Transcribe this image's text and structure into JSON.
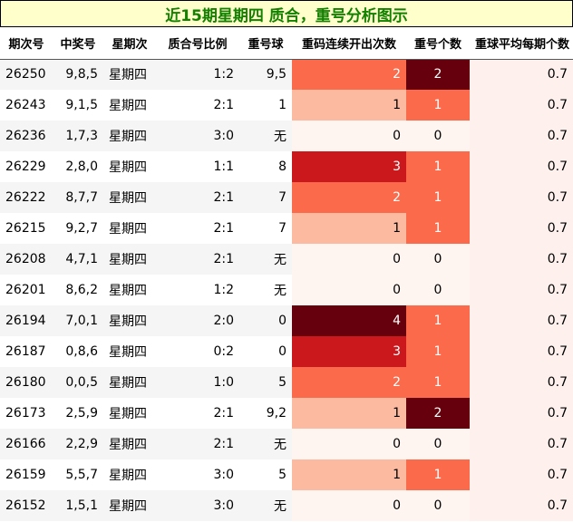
{
  "title": "近15期星期四 质合，重号分析图示",
  "columns": [
    "期次号",
    "中奖号",
    "星期次",
    "质合号比例",
    "重号球",
    "重码连续开出次数",
    "重号个数",
    "重球平均每期个数"
  ],
  "rows": [
    {
      "issue": "26250",
      "numbers": "9,8,5",
      "weekday": "星期四",
      "ratio": "1:2",
      "repeat_ball": "9,5",
      "consecutive": "2",
      "repeat_count": "2",
      "avg": "0.7"
    },
    {
      "issue": "26243",
      "numbers": "9,1,5",
      "weekday": "星期四",
      "ratio": "2:1",
      "repeat_ball": "1",
      "consecutive": "1",
      "repeat_count": "1",
      "avg": "0.7"
    },
    {
      "issue": "26236",
      "numbers": "1,7,3",
      "weekday": "星期四",
      "ratio": "3:0",
      "repeat_ball": "无",
      "consecutive": "0",
      "repeat_count": "0",
      "avg": "0.7"
    },
    {
      "issue": "26229",
      "numbers": "2,8,0",
      "weekday": "星期四",
      "ratio": "1:1",
      "repeat_ball": "8",
      "consecutive": "3",
      "repeat_count": "1",
      "avg": "0.7"
    },
    {
      "issue": "26222",
      "numbers": "8,7,7",
      "weekday": "星期四",
      "ratio": "2:1",
      "repeat_ball": "7",
      "consecutive": "2",
      "repeat_count": "1",
      "avg": "0.7"
    },
    {
      "issue": "26215",
      "numbers": "9,2,7",
      "weekday": "星期四",
      "ratio": "2:1",
      "repeat_ball": "7",
      "consecutive": "1",
      "repeat_count": "1",
      "avg": "0.7"
    },
    {
      "issue": "26208",
      "numbers": "4,7,1",
      "weekday": "星期四",
      "ratio": "2:1",
      "repeat_ball": "无",
      "consecutive": "0",
      "repeat_count": "0",
      "avg": "0.7"
    },
    {
      "issue": "26201",
      "numbers": "8,6,2",
      "weekday": "星期四",
      "ratio": "1:2",
      "repeat_ball": "无",
      "consecutive": "0",
      "repeat_count": "0",
      "avg": "0.7"
    },
    {
      "issue": "26194",
      "numbers": "7,0,1",
      "weekday": "星期四",
      "ratio": "2:0",
      "repeat_ball": "0",
      "consecutive": "4",
      "repeat_count": "1",
      "avg": "0.7"
    },
    {
      "issue": "26187",
      "numbers": "0,8,6",
      "weekday": "星期四",
      "ratio": "0:2",
      "repeat_ball": "0",
      "consecutive": "3",
      "repeat_count": "1",
      "avg": "0.7"
    },
    {
      "issue": "26180",
      "numbers": "0,0,5",
      "weekday": "星期四",
      "ratio": "1:0",
      "repeat_ball": "5",
      "consecutive": "2",
      "repeat_count": "1",
      "avg": "0.7"
    },
    {
      "issue": "26173",
      "numbers": "2,5,9",
      "weekday": "星期四",
      "ratio": "2:1",
      "repeat_ball": "9,2",
      "consecutive": "1",
      "repeat_count": "2",
      "avg": "0.7"
    },
    {
      "issue": "26166",
      "numbers": "2,2,9",
      "weekday": "星期四",
      "ratio": "2:1",
      "repeat_ball": "无",
      "consecutive": "0",
      "repeat_count": "0",
      "avg": "0.7"
    },
    {
      "issue": "26159",
      "numbers": "5,5,7",
      "weekday": "星期四",
      "ratio": "3:0",
      "repeat_ball": "5",
      "consecutive": "1",
      "repeat_count": "1",
      "avg": "0.7"
    },
    {
      "issue": "26152",
      "numbers": "1,5,1",
      "weekday": "星期四",
      "ratio": "3:0",
      "repeat_ball": "无",
      "consecutive": "0",
      "repeat_count": "0",
      "avg": "0.7"
    }
  ],
  "heat_colors": {
    "zero": "#fff5f0",
    "one": "#fcbba1",
    "two": "#fb6a4a",
    "three": "#cb181d",
    "four": "#67000d"
  },
  "repeat_colors": {
    "zero": "#fff5f0",
    "one": "#fb6a4a",
    "two": "#67000d"
  },
  "avg_color": "#fef0ec"
}
